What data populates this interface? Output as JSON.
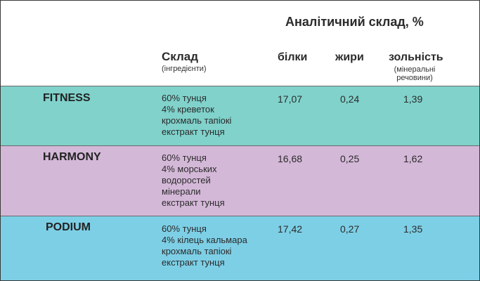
{
  "header": {
    "analytic_title": "Аналітичний склад, %",
    "composition_label": "Склад",
    "composition_sub": "(інгредієнти)",
    "protein_label": "білки",
    "fat_label": "жири",
    "ash_label": "зольність",
    "ash_sub_1": "(мінеральні",
    "ash_sub_2": "речовини)"
  },
  "rows": [
    {
      "name": "FITNESS",
      "ingredients": [
        "60% тунця",
        "4% креветок",
        "крохмаль тапіокі",
        "екстракт тунця"
      ],
      "protein": "17,07",
      "fat": "0,24",
      "ash": "1,39",
      "color": "#80d2cb"
    },
    {
      "name": "HARMONY",
      "ingredients": [
        "60% тунця",
        "4% морських",
        "водоростей",
        "мінерали",
        "екстракт тунця"
      ],
      "protein": "16,68",
      "fat": "0,25",
      "ash": "1,62",
      "color": "#d4b8d8"
    },
    {
      "name": "PODIUM",
      "ingredients": [
        "60% тунця",
        "4% кілець кальмара",
        "крохмаль тапіокі",
        "екстракт тунця"
      ],
      "protein": "17,42",
      "fat": "0,27",
      "ash": "1,35",
      "color": "#7dcfe6"
    }
  ]
}
